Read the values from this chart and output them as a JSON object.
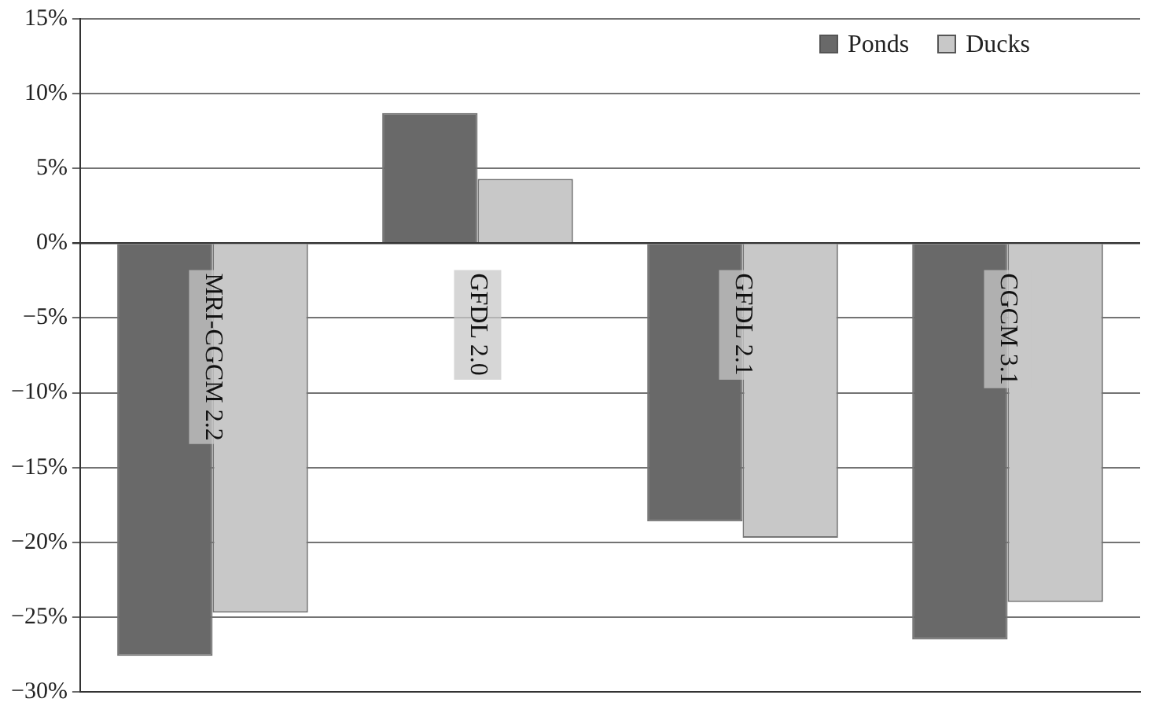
{
  "chart_data": {
    "type": "bar",
    "categories": [
      "MRI-CGCM 2.2",
      "GFDL 2.0",
      "GFDL 2.1",
      "CGCM 3.1"
    ],
    "series": [
      {
        "name": "Ponds",
        "color": "#696969",
        "values": [
          -27.6,
          8.7,
          -18.6,
          -26.5
        ]
      },
      {
        "name": "Ducks",
        "color": "#c8c8c8",
        "values": [
          -24.7,
          4.3,
          -19.7,
          -24.0
        ]
      }
    ],
    "ylim": [
      -30,
      15
    ],
    "yticks": [
      {
        "value": -30,
        "label": "−30%"
      },
      {
        "value": -25,
        "label": "−25%"
      },
      {
        "value": -20,
        "label": "−20%"
      },
      {
        "value": -15,
        "label": "−15%"
      },
      {
        "value": -10,
        "label": "−10%"
      },
      {
        "value": -5,
        "label": "−5%"
      },
      {
        "value": 0,
        "label": "0%"
      },
      {
        "value": 5,
        "label": "5%"
      },
      {
        "value": 10,
        "label": "10%"
      },
      {
        "value": 15,
        "label": "15%"
      }
    ],
    "grid": "y",
    "legend": "top right"
  }
}
